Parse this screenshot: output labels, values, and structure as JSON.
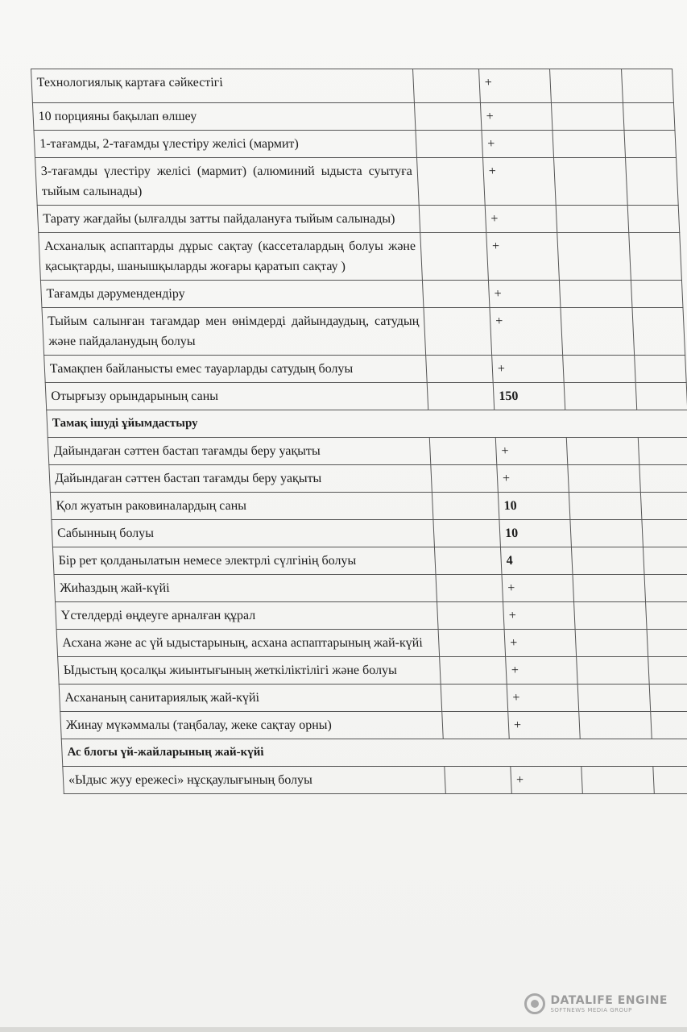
{
  "table": {
    "rows": [
      {
        "label": "Технологиялық картаға сәйкестігі",
        "values": [
          "",
          "+",
          "",
          ""
        ],
        "height": 42
      },
      {
        "label": "10 порцияны бақылап өлшеу",
        "values": [
          "",
          "+",
          "",
          ""
        ]
      },
      {
        "label": "1-тағамды, 2-тағамды үлестіру желісі  (мармит)",
        "values": [
          "",
          "+",
          "",
          ""
        ]
      },
      {
        "label": "3-тағамды үлестіру желісі  (мармит) (алюминий ыдыста суытуға тыйым салынады)",
        "values": [
          "",
          "+",
          "",
          ""
        ]
      },
      {
        "label": "Тарату жағдайы (ылғалды затты пайдалануға тыйым салынады)",
        "values": [
          "",
          "+",
          "",
          ""
        ]
      },
      {
        "label": "Асханалық аспаптарды дұрыс сақтау (кассеталардың болуы және қасықтарды, шанышқыларды жоғары қаратып сақтау )",
        "values": [
          "",
          "+",
          "",
          ""
        ]
      },
      {
        "label": "Тағамды дәрумендендіру",
        "values": [
          "",
          "+",
          "",
          ""
        ]
      },
      {
        "label": "Тыйым салынған тағамдар мен өнімдерді дайындаудың, сатудың және пайдаланудың болуы",
        "values": [
          "",
          "+",
          "",
          ""
        ]
      },
      {
        "label": "Тамақпен байланысты емес тауарларды сатудың болуы",
        "values": [
          "",
          "+",
          "",
          ""
        ]
      },
      {
        "label": "Отырғызу орындарының саны",
        "values": [
          "",
          "150",
          "",
          ""
        ]
      },
      {
        "section": "Тамақ ішуді ұйымдастыру"
      },
      {
        "label": "Дайындаған сәттен бастап тағамды беру уақыты",
        "values": [
          "",
          "+",
          "",
          ""
        ]
      },
      {
        "label": "Дайындаған сәттен бастап тағамды беру уақыты",
        "values": [
          "",
          "+",
          "",
          ""
        ]
      },
      {
        "label": "Қол жуатын раковиналардың саны",
        "values": [
          "",
          "10",
          "",
          ""
        ]
      },
      {
        "label": "Сабынның болуы",
        "values": [
          "",
          "10",
          "",
          ""
        ]
      },
      {
        "label": "Бір рет қолданылатын немесе электрлі сүлгінің болуы",
        "values": [
          "",
          "4",
          "",
          ""
        ]
      },
      {
        "label": "Жиһаздың жай-күйі",
        "values": [
          "",
          "+",
          "",
          ""
        ]
      },
      {
        "label": "Үстелдерді өңдеуге арналған құрал",
        "values": [
          "",
          "+",
          "",
          ""
        ]
      },
      {
        "label": "Асхана және ас үй ыдыстарының, асхана аспаптарының жай-күйі",
        "values": [
          "",
          "+",
          "",
          ""
        ]
      },
      {
        "label": "Ыдыстың қосалқы жиынтығының жеткіліктілігі және болуы",
        "values": [
          "",
          "+",
          "",
          ""
        ]
      },
      {
        "label": "Асхананың санитариялық жай-күйі",
        "values": [
          "",
          "+",
          "",
          ""
        ]
      },
      {
        "label": "Жинау мүкәммалы (таңбалау, жеке сақтау орны)",
        "values": [
          "",
          "+",
          "",
          ""
        ]
      },
      {
        "section": "Ас блогы үй-жайларының жай-күйі"
      },
      {
        "label": "«Ыдыс жуу ережесі» нұсқаулығының болуы",
        "values": [
          "",
          "+",
          "",
          ""
        ]
      }
    ]
  },
  "watermark": {
    "title": "DATALIFE ENGINE",
    "subtitle": "SOFTNEWS MEDIA GROUP"
  }
}
